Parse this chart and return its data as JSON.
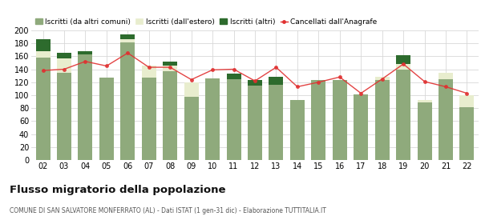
{
  "years": [
    "02",
    "03",
    "04",
    "05",
    "06",
    "07",
    "08",
    "09",
    "10",
    "11",
    "12",
    "13",
    "14",
    "15",
    "16",
    "17",
    "18",
    "19",
    "20",
    "21",
    "22"
  ],
  "iscritti_altri_comuni": [
    158,
    135,
    163,
    127,
    181,
    127,
    137,
    98,
    126,
    125,
    115,
    116,
    93,
    123,
    123,
    101,
    123,
    140,
    89,
    125,
    82
  ],
  "iscritti_estero": [
    10,
    22,
    0,
    0,
    5,
    18,
    8,
    22,
    0,
    0,
    0,
    0,
    0,
    0,
    0,
    0,
    5,
    8,
    3,
    10,
    18
  ],
  "iscritti_altri": [
    18,
    8,
    5,
    0,
    8,
    0,
    7,
    0,
    0,
    8,
    8,
    12,
    0,
    0,
    0,
    0,
    0,
    13,
    0,
    0,
    0
  ],
  "cancellati": [
    138,
    140,
    152,
    145,
    165,
    143,
    143,
    124,
    139,
    140,
    122,
    143,
    113,
    120,
    128,
    103,
    125,
    148,
    121,
    113,
    103
  ],
  "color_altri_comuni": "#8faa7c",
  "color_estero": "#e8edce",
  "color_altri": "#2d6b2d",
  "color_cancellati": "#e03030",
  "background_color": "#ffffff",
  "grid_color": "#d8d8d8",
  "ylim": [
    0,
    200
  ],
  "yticks": [
    0,
    20,
    40,
    60,
    80,
    100,
    120,
    140,
    160,
    180,
    200
  ],
  "title": "Flusso migratorio della popolazione",
  "subtitle": "COMUNE DI SAN SALVATORE MONFERRATO (AL) - Dati ISTAT (1 gen-31 dic) - Elaborazione TUTTITALIA.IT",
  "legend_labels": [
    "Iscritti (da altri comuni)",
    "Iscritti (dall'estero)",
    "Iscritti (altri)",
    "Cancellati dall'Anagrafe"
  ]
}
